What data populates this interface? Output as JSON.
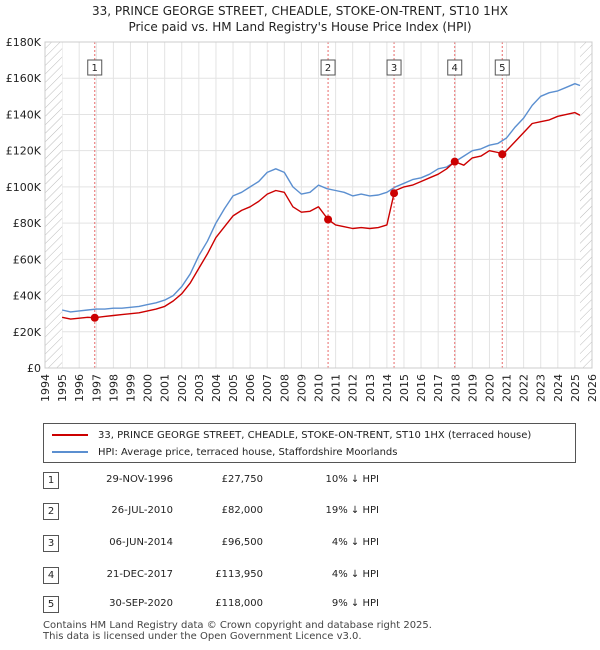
{
  "title_line1": "33, PRINCE GEORGE STREET, CHEADLE, STOKE-ON-TRENT, ST10 1HX",
  "title_line2": "Price paid vs. HM Land Registry's House Price Index (HPI)",
  "colors": {
    "price": "#cc0000",
    "hpi": "#5b8fd0",
    "marker_line": "#e86a6a",
    "future_hatch": "#999999"
  },
  "chart_data": {
    "type": "line",
    "xlim": [
      1994,
      2026
    ],
    "ylim": [
      0,
      180000
    ],
    "x_ticks": [
      1994,
      1995,
      1996,
      1997,
      1998,
      1999,
      2000,
      2001,
      2002,
      2003,
      2004,
      2005,
      2006,
      2007,
      2008,
      2009,
      2010,
      2011,
      2012,
      2013,
      2014,
      2015,
      2016,
      2017,
      2018,
      2019,
      2020,
      2021,
      2022,
      2023,
      2024,
      2025,
      2026
    ],
    "y_ticks": [
      {
        "value": 0,
        "label": "£0"
      },
      {
        "value": 20000,
        "label": "£20K"
      },
      {
        "value": 40000,
        "label": "£40K"
      },
      {
        "value": 60000,
        "label": "£60K"
      },
      {
        "value": 80000,
        "label": "£80K"
      },
      {
        "value": 100000,
        "label": "£100K"
      },
      {
        "value": 120000,
        "label": "£120K"
      },
      {
        "value": 140000,
        "label": "£140K"
      },
      {
        "value": 160000,
        "label": "£160K"
      },
      {
        "value": 180000,
        "label": "£180K"
      }
    ],
    "hatched_before": 1995.0,
    "hatched_after": 2025.3,
    "series": [
      {
        "name": "HPI: Average price, terraced house, Staffordshire Moorlands",
        "color": "#5b8fd0",
        "x": [
          1995.0,
          1995.5,
          1996.0,
          1996.5,
          1997.0,
          1997.5,
          1998.0,
          1998.5,
          1999.0,
          1999.5,
          2000.0,
          2000.5,
          2001.0,
          2001.5,
          2002.0,
          2002.5,
          2003.0,
          2003.5,
          2004.0,
          2004.5,
          2005.0,
          2005.5,
          2006.0,
          2006.5,
          2007.0,
          2007.5,
          2008.0,
          2008.5,
          2009.0,
          2009.5,
          2010.0,
          2010.5,
          2011.0,
          2011.5,
          2012.0,
          2012.5,
          2013.0,
          2013.5,
          2014.0,
          2014.5,
          2015.0,
          2015.5,
          2016.0,
          2016.5,
          2017.0,
          2017.5,
          2018.0,
          2018.5,
          2019.0,
          2019.5,
          2020.0,
          2020.5,
          2021.0,
          2021.5,
          2022.0,
          2022.5,
          2023.0,
          2023.5,
          2024.0,
          2024.5,
          2025.0,
          2025.3
        ],
        "y": [
          32000,
          31000,
          31500,
          32000,
          32500,
          32500,
          33000,
          33000,
          33500,
          34000,
          35000,
          36000,
          37500,
          40000,
          45000,
          52000,
          62000,
          70000,
          80000,
          88000,
          95000,
          97000,
          100000,
          103000,
          108000,
          110000,
          108000,
          100000,
          96000,
          97000,
          101000,
          99000,
          98000,
          97000,
          95000,
          96000,
          95000,
          95500,
          97000,
          100000,
          102000,
          104000,
          105000,
          107000,
          110000,
          111000,
          114000,
          117000,
          120000,
          121000,
          123000,
          124000,
          127000,
          133000,
          138000,
          145000,
          150000,
          152000,
          153000,
          155000,
          157000,
          156000
        ]
      },
      {
        "name": "33, PRINCE GEORGE STREET, CHEADLE, STOKE-ON-TRENT, ST10 1HX (terraced house)",
        "color": "#cc0000",
        "x": [
          1995.0,
          1995.5,
          1996.0,
          1996.5,
          1996.91,
          1997.5,
          1998.0,
          1998.5,
          1999.0,
          1999.5,
          2000.0,
          2000.5,
          2001.0,
          2001.5,
          2002.0,
          2002.5,
          2003.0,
          2003.5,
          2004.0,
          2004.5,
          2005.0,
          2005.5,
          2006.0,
          2006.5,
          2007.0,
          2007.5,
          2008.0,
          2008.5,
          2009.0,
          2009.5,
          2010.0,
          2010.56,
          2011.0,
          2011.5,
          2012.0,
          2012.5,
          2013.0,
          2013.5,
          2014.0,
          2014.42,
          2014.5,
          2015.0,
          2015.5,
          2016.0,
          2016.5,
          2017.0,
          2017.5,
          2017.97,
          2018.5,
          2019.0,
          2019.5,
          2020.0,
          2020.5,
          2020.75,
          2021.0,
          2021.5,
          2022.0,
          2022.5,
          2023.0,
          2023.5,
          2024.0,
          2024.5,
          2025.0,
          2025.3
        ],
        "y": [
          28000,
          27000,
          27500,
          28000,
          27750,
          28500,
          29000,
          29500,
          30000,
          30500,
          31500,
          32500,
          34000,
          37000,
          41000,
          47000,
          55000,
          63000,
          72000,
          78000,
          84000,
          87000,
          89000,
          92000,
          96000,
          98000,
          97000,
          89000,
          86000,
          86500,
          89000,
          82000,
          79000,
          78000,
          77000,
          77500,
          77000,
          77500,
          79000,
          96500,
          98000,
          100000,
          101000,
          103000,
          105000,
          107000,
          110000,
          113950,
          112000,
          116000,
          117000,
          120000,
          119000,
          118000,
          120000,
          125000,
          130000,
          135000,
          136000,
          137000,
          139000,
          140000,
          141000,
          139500
        ]
      }
    ],
    "sales": [
      {
        "num": "1",
        "x": 1996.91,
        "y": 27750
      },
      {
        "num": "2",
        "x": 2010.56,
        "y": 82000
      },
      {
        "num": "3",
        "x": 2014.42,
        "y": 96500
      },
      {
        "num": "4",
        "x": 2017.97,
        "y": 113950
      },
      {
        "num": "5",
        "x": 2020.75,
        "y": 118000
      }
    ]
  },
  "legend": {
    "price_label": "33, PRINCE GEORGE STREET, CHEADLE, STOKE-ON-TRENT, ST10 1HX (terraced house)",
    "hpi_label": "HPI: Average price, terraced house, Staffordshire Moorlands"
  },
  "transactions": [
    {
      "num": "1",
      "date": "29-NOV-1996",
      "price": "£27,750",
      "hpi": "10% ↓ HPI"
    },
    {
      "num": "2",
      "date": "26-JUL-2010",
      "price": "£82,000",
      "hpi": "19% ↓ HPI"
    },
    {
      "num": "3",
      "date": "06-JUN-2014",
      "price": "£96,500",
      "hpi": "4% ↓ HPI"
    },
    {
      "num": "4",
      "date": "21-DEC-2017",
      "price": "£113,950",
      "hpi": "4% ↓ HPI"
    },
    {
      "num": "5",
      "date": "30-SEP-2020",
      "price": "£118,000",
      "hpi": "9% ↓ HPI"
    }
  ],
  "footer_line1": "Contains HM Land Registry data © Crown copyright and database right 2025.",
  "footer_line2": "This data is licensed under the Open Government Licence v3.0."
}
